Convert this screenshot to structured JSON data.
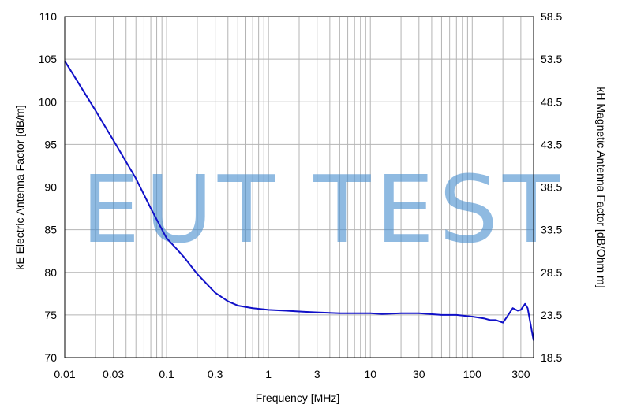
{
  "watermark": "EUT TEST",
  "chart_data": {
    "type": "line",
    "xlabel": "Frequency [MHz]",
    "ylabel": "kE Electric Antenna Factor [dB/m]",
    "y2label": "kH Magnetic Antenna Factor [dB/Ohm m]",
    "xscale": "log",
    "xlim": [
      0.01,
      400
    ],
    "ylim": [
      70,
      110
    ],
    "y2lim": [
      18.5,
      58.5
    ],
    "grid": true,
    "line_color": "#1010c8",
    "x_ticks": [
      0.01,
      0.03,
      0.1,
      0.3,
      1,
      3,
      10,
      30,
      100,
      300
    ],
    "x_tick_labels": [
      "0.01",
      "0.03",
      "0.1",
      "0.3",
      "1",
      "3",
      "10",
      "30",
      "100",
      "300"
    ],
    "y_ticks": [
      70,
      75,
      80,
      85,
      90,
      95,
      100,
      105,
      110
    ],
    "y_tick_labels": [
      "70",
      "75",
      "80",
      "85",
      "90",
      "95",
      "100",
      "105",
      "110"
    ],
    "y2_ticks": [
      18.5,
      23.5,
      28.5,
      33.5,
      38.5,
      43.5,
      48.5,
      53.5,
      58.5
    ],
    "y2_tick_labels": [
      "18.5",
      "23.5",
      "28.5",
      "33.5",
      "38.5",
      "43.5",
      "48.5",
      "53.5",
      "58.5"
    ],
    "series": [
      {
        "x": [
          0.01,
          0.02,
          0.03,
          0.05,
          0.07,
          0.1,
          0.12,
          0.15,
          0.2,
          0.3,
          0.4,
          0.5,
          0.7,
          1,
          1.5,
          2,
          3,
          5,
          7,
          10,
          13,
          20,
          30,
          50,
          70,
          100,
          130,
          150,
          170,
          200,
          220,
          250,
          280,
          300,
          330,
          350,
          370,
          400
        ],
        "y": [
          104.8,
          99.0,
          95.5,
          91.0,
          87.5,
          84.0,
          83.0,
          81.7,
          79.8,
          77.6,
          76.6,
          76.1,
          75.8,
          75.6,
          75.5,
          75.4,
          75.3,
          75.2,
          75.2,
          75.2,
          75.1,
          75.2,
          75.2,
          75.0,
          75.0,
          74.8,
          74.6,
          74.4,
          74.4,
          74.1,
          74.8,
          75.8,
          75.5,
          75.6,
          76.3,
          75.8,
          74.2,
          72.0
        ]
      }
    ]
  }
}
